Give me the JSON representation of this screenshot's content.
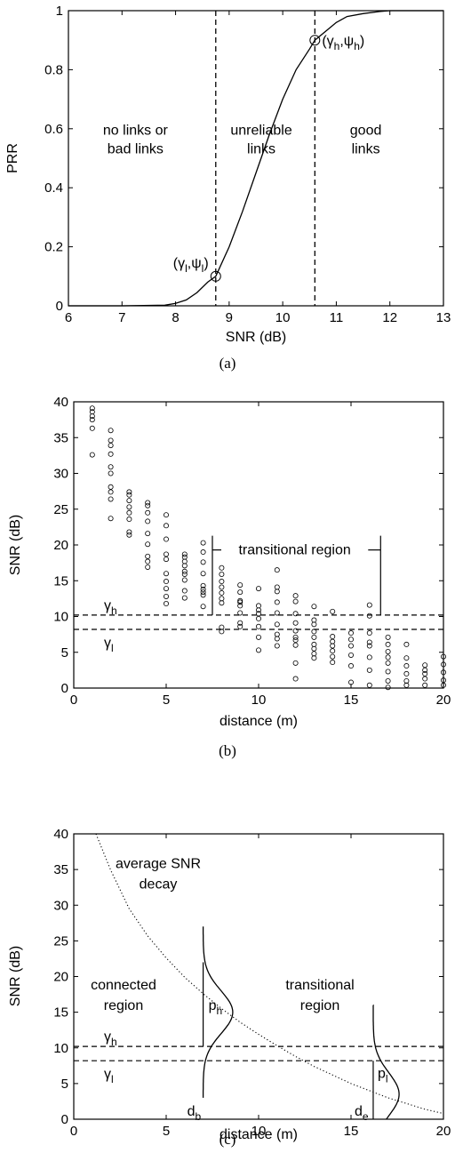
{
  "chart_data": [
    {
      "panel": "a",
      "type": "line",
      "caption": "(a)",
      "xlabel": "SNR (dB)",
      "ylabel": "PRR",
      "xlim": [
        6,
        13
      ],
      "ylim": [
        0,
        1
      ],
      "xticks": [
        6,
        7,
        8,
        9,
        10,
        11,
        12,
        13
      ],
      "yticks": [
        0,
        0.2,
        0.4,
        0.6,
        0.8,
        1
      ],
      "ytick_labels": [
        "0",
        "0.2",
        "0.4",
        "0.6",
        "0.8",
        "1"
      ],
      "grid": false,
      "series": [
        {
          "x": [
            6,
            7,
            7.8,
            8,
            8.2,
            8.4,
            8.6,
            8.75,
            9,
            9.25,
            9.5,
            9.75,
            10,
            10.25,
            10.5,
            10.6,
            10.8,
            11,
            11.2,
            11.5,
            11.8,
            12,
            12.2,
            12.5,
            13
          ],
          "y": [
            0,
            0,
            0.002,
            0.008,
            0.02,
            0.045,
            0.08,
            0.1,
            0.2,
            0.32,
            0.45,
            0.58,
            0.7,
            0.8,
            0.87,
            0.9,
            0.93,
            0.96,
            0.98,
            0.99,
            0.997,
            1,
            1,
            1,
            1
          ]
        }
      ],
      "vlines": [
        8.75,
        10.6
      ],
      "markers": [
        {
          "x": 8.75,
          "y": 0.1,
          "label_base": "(γ",
          "sub1": "l",
          "mid": ",ψ",
          "sub2": "l",
          "end": ")"
        },
        {
          "x": 10.6,
          "y": 0.9,
          "label_base": "(γ",
          "sub1": "h",
          "mid": ",ψ",
          "sub2": "h",
          "end": ")"
        }
      ],
      "region_labels": [
        {
          "lines": [
            "no links or",
            "bad links"
          ],
          "x": 7.25,
          "y": 0.58
        },
        {
          "lines": [
            "unreliable",
            "links"
          ],
          "x": 9.6,
          "y": 0.58
        },
        {
          "lines": [
            "good",
            "links"
          ],
          "x": 11.55,
          "y": 0.58
        }
      ]
    },
    {
      "panel": "b",
      "type": "scatter",
      "caption": "(b)",
      "xlabel": "distance (m)",
      "ylabel": "SNR (dB)",
      "xlim": [
        0,
        20
      ],
      "ylim": [
        0,
        40
      ],
      "xticks": [
        0,
        5,
        10,
        15,
        20
      ],
      "yticks": [
        0,
        5,
        10,
        15,
        20,
        25,
        30,
        35,
        40
      ],
      "grid": false,
      "points": [
        {
          "x": 1,
          "y": [
            32.6,
            36.3,
            37.5,
            38.0,
            38.6,
            39.1
          ]
        },
        {
          "x": 2,
          "y": [
            23.7,
            26.4,
            27.4,
            28.1,
            30.0,
            30.9,
            32.7,
            33.9,
            34.6,
            36.0
          ]
        },
        {
          "x": 3,
          "y": [
            21.4,
            21.8,
            23.6,
            24.5,
            25.3,
            26.2,
            27.0,
            27.4
          ]
        },
        {
          "x": 4,
          "y": [
            16.9,
            17.7,
            18.4,
            20.1,
            21.6,
            23.3,
            24.5,
            25.5,
            25.9
          ]
        },
        {
          "x": 5,
          "y": [
            11.8,
            12.8,
            13.9,
            14.9,
            16.0,
            18.0,
            18.7,
            20.8,
            22.7,
            24.2
          ]
        },
        {
          "x": 6,
          "y": [
            12.6,
            13.6,
            15.1,
            15.9,
            16.3,
            17.1,
            17.7,
            18.3,
            18.7
          ]
        },
        {
          "x": 7,
          "y": [
            11.4,
            13.0,
            13.4,
            13.8,
            14.3,
            16.0,
            17.6,
            19.0,
            20.3
          ]
        },
        {
          "x": 8,
          "y": [
            7.9,
            8.5,
            11.9,
            12.5,
            13.3,
            14.1,
            14.9,
            15.9,
            16.8
          ]
        },
        {
          "x": 9,
          "y": [
            8.6,
            9.1,
            10.5,
            11.5,
            12.0,
            12.2,
            13.4,
            14.4
          ]
        },
        {
          "x": 10,
          "y": [
            5.3,
            7.1,
            8.6,
            9.7,
            10.4,
            10.9,
            11.5,
            13.9
          ]
        },
        {
          "x": 11,
          "y": [
            5.9,
            6.9,
            7.5,
            8.9,
            10.5,
            12.0,
            13.5,
            14.1,
            16.5
          ]
        },
        {
          "x": 12,
          "y": [
            1.3,
            3.5,
            6.0,
            6.7,
            7.1,
            8.0,
            9.1,
            10.4,
            12.1,
            12.9
          ]
        },
        {
          "x": 13,
          "y": [
            4.2,
            4.8,
            5.5,
            6.1,
            7.1,
            7.9,
            8.9,
            9.5,
            11.4
          ]
        },
        {
          "x": 14,
          "y": [
            3.6,
            4.4,
            5.2,
            5.9,
            6.5,
            7.2,
            10.7
          ]
        },
        {
          "x": 15,
          "y": [
            0.8,
            3.1,
            4.6,
            5.9,
            6.8,
            7.7
          ]
        },
        {
          "x": 16,
          "y": [
            0.4,
            2.5,
            4.3,
            5.9,
            6.4,
            7.7,
            10.1,
            11.6
          ]
        },
        {
          "x": 17,
          "y": [
            0.1,
            1.0,
            2.3,
            3.5,
            4.3,
            5.1,
            6.1,
            7.1
          ]
        },
        {
          "x": 18,
          "y": [
            0.4,
            1.0,
            2.0,
            3.1,
            4.2,
            6.1
          ]
        },
        {
          "x": 19,
          "y": [
            0.4,
            1.3,
            2.0,
            2.5,
            3.2
          ]
        },
        {
          "x": 20,
          "y": [
            0.4,
            1.1,
            2.2,
            3.3,
            4.4
          ]
        }
      ],
      "hlines": [
        {
          "y": 10.2,
          "label": "γ",
          "sub": "h"
        },
        {
          "y": 8.2,
          "label": "γ",
          "sub": "l"
        }
      ],
      "region": {
        "label": "transitional region",
        "x_start": 7.5,
        "x_end": 16.6,
        "y_top": 19.3
      }
    },
    {
      "panel": "c",
      "type": "line",
      "caption": "(c)",
      "xlabel": "distance (m)",
      "ylabel": "SNR (dB)",
      "xlim": [
        0,
        20
      ],
      "ylim": [
        0,
        40
      ],
      "xticks": [
        0,
        5,
        10,
        15,
        20
      ],
      "yticks": [
        0,
        5,
        10,
        15,
        20,
        25,
        30,
        35,
        40
      ],
      "grid": false,
      "decay": {
        "x": [
          1.2,
          2,
          3,
          4,
          5,
          6,
          7,
          8,
          9,
          10,
          11,
          12,
          13,
          14,
          15,
          16,
          17,
          18,
          19,
          20
        ],
        "y": [
          40,
          34.9,
          29.5,
          25.7,
          22.6,
          19.9,
          17.6,
          15.5,
          13.6,
          11.9,
          10.3,
          8.8,
          7.4,
          6.2,
          5.0,
          4.0,
          3.0,
          2.2,
          1.4,
          0.8
        ]
      },
      "hlines": [
        {
          "y": 10.2,
          "label": "γ",
          "sub": "h"
        },
        {
          "y": 8.2,
          "label": "γ",
          "sub": "l"
        }
      ],
      "verticals": [
        {
          "x": 7.0,
          "label": "d",
          "sub": "b",
          "pdf_label": "p",
          "pdf_sub": "h",
          "center_y": 15,
          "sigma": 3,
          "width": 1.6
        },
        {
          "x": 16.2,
          "label": "d",
          "sub": "e",
          "pdf_label": "p",
          "pdf_sub": "l",
          "center_y": 3.5,
          "sigma": 3,
          "width": 1.4
        }
      ],
      "texts": [
        {
          "lines": [
            "average SNR",
            "decay"
          ]
        },
        {
          "lines": [
            "connected",
            "region"
          ]
        },
        {
          "lines": [
            "transitional",
            "region"
          ]
        }
      ]
    }
  ]
}
